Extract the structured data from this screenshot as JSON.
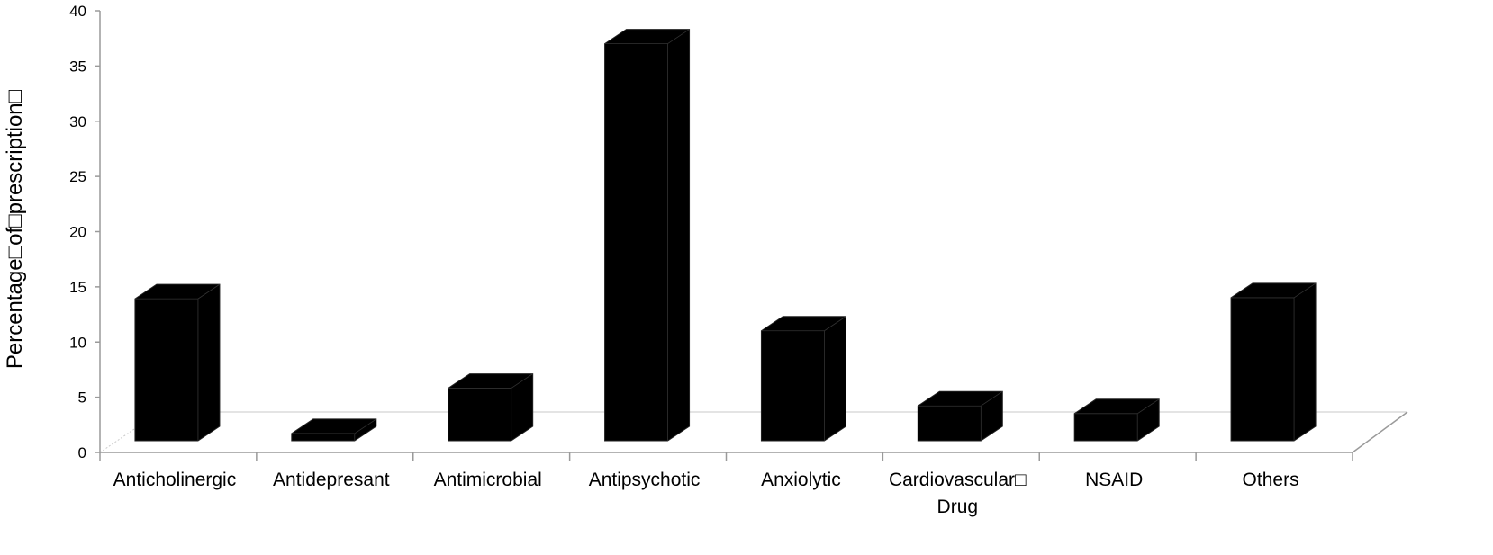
{
  "chart_data": {
    "type": "bar",
    "title": "",
    "xlabel": "",
    "ylabel": "Percentage□of□prescription□",
    "ylim": [
      0,
      40
    ],
    "yticks": [
      0,
      5,
      10,
      15,
      20,
      25,
      30,
      35,
      40
    ],
    "grid": false,
    "legend": "none",
    "style": "3d-column",
    "categories": [
      "Anticholinergic",
      "Antidepresant",
      "Antimicrobial",
      "Antipsychotic",
      "Anxiolytic",
      "Cardiovascular□ Drug",
      "NSAID",
      "Others"
    ],
    "category_lines": [
      [
        "Anticholinergic"
      ],
      [
        "Antidepresant"
      ],
      [
        "Antimicrobial"
      ],
      [
        "Antipsychotic"
      ],
      [
        "Anxiolytic"
      ],
      [
        "Cardiovascular□",
        "Drug"
      ],
      [
        "NSAID"
      ],
      [
        "Others"
      ]
    ],
    "values": [
      16.2,
      4.0,
      8.1,
      39.3,
      13.3,
      6.5,
      5.8,
      16.3
    ],
    "colors": {
      "bar": "#000000",
      "axis": "#9a9a9a",
      "floor": "#c8c8c8"
    }
  }
}
